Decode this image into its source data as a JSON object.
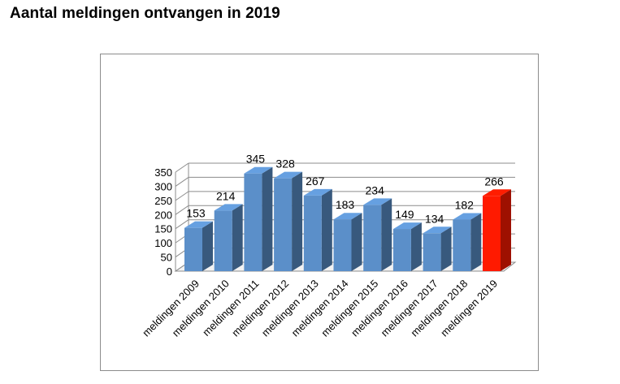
{
  "page": {
    "title": "Aantal meldingen ontvangen in 2019"
  },
  "colors": {
    "bar": "#5b8fc9",
    "bar_highlight": "#ff1a00",
    "grid": "#8c8c8c",
    "frame": "#8c8c8c"
  },
  "chart_data": {
    "type": "bar",
    "title": "",
    "xlabel": "",
    "ylabel": "",
    "ylim": [
      0,
      350
    ],
    "yticks": [
      0,
      50,
      100,
      150,
      200,
      250,
      300,
      350
    ],
    "grid": true,
    "style": "3d",
    "categories": [
      "meldingen 2009",
      "meldingen 2010",
      "meldingen 2011",
      "meldingen 2012",
      "meldingen 2013",
      "meldingen 2014",
      "meldingen 2015",
      "meldingen 2016",
      "meldingen 2017",
      "meldingen 2018",
      "meldingen 2019"
    ],
    "values": [
      153,
      214,
      345,
      328,
      267,
      183,
      234,
      149,
      134,
      182,
      266
    ],
    "data_labels": [
      "153",
      "214",
      "345",
      "328",
      "267",
      "183",
      "234",
      "149",
      "134",
      "182",
      "266"
    ],
    "highlight_index": 10
  }
}
